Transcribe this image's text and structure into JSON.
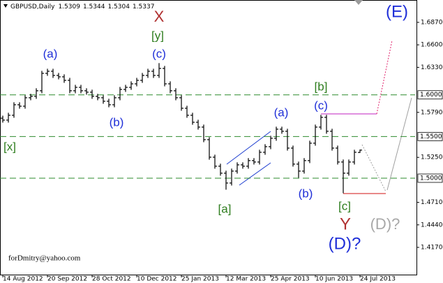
{
  "chart_data": {
    "type": "ohlc",
    "title": "GBPUSD,Daily",
    "color": "#000000",
    "open": [
      1.572,
      1.5697,
      1.5755,
      1.5881,
      1.5864,
      1.5965,
      1.5982,
      1.6049,
      1.6258,
      1.6283,
      1.6233,
      1.6216,
      1.6174,
      1.6049,
      1.609,
      1.6049,
      1.6032,
      1.5982,
      1.5965,
      1.5923,
      1.5881,
      1.5965,
      1.6065,
      1.609,
      1.6132,
      1.6174,
      1.6233,
      1.6283,
      1.6233,
      1.6317,
      1.6132,
      1.6049,
      1.5965,
      1.5839,
      1.5755,
      1.5671,
      1.5613,
      1.5462,
      1.5252,
      1.5144,
      1.506,
      1.4942,
      1.5085,
      1.516,
      1.5144,
      1.5211,
      1.5194,
      1.5311,
      1.5378,
      1.5479,
      1.5588,
      1.5563,
      1.5361,
      1.5169,
      1.5085,
      1.5211,
      1.542,
      1.5613,
      1.573,
      1.5563,
      1.5361,
      1.5194,
      1.506,
      1.5194,
      1.5309
    ],
    "high": [
      1.575,
      1.5785,
      1.5911,
      1.5911,
      1.5995,
      1.6012,
      1.6079,
      1.6288,
      1.6313,
      1.6313,
      1.6263,
      1.6246,
      1.6204,
      1.612,
      1.612,
      1.6079,
      1.6062,
      1.6012,
      1.5995,
      1.5953,
      1.5995,
      1.6095,
      1.612,
      1.6162,
      1.6204,
      1.6263,
      1.6313,
      1.6313,
      1.6381,
      1.6347,
      1.6162,
      1.6079,
      1.5995,
      1.5869,
      1.5785,
      1.5701,
      1.5643,
      1.5492,
      1.5282,
      1.5174,
      1.509,
      1.5115,
      1.519,
      1.519,
      1.5241,
      1.5241,
      1.5341,
      1.5408,
      1.5509,
      1.5618,
      1.5618,
      1.5593,
      1.5391,
      1.5199,
      1.5241,
      1.545,
      1.5643,
      1.576,
      1.576,
      1.5593,
      1.5391,
      1.5224,
      1.5224,
      1.5341,
      1.5344
    ],
    "low": [
      1.5667,
      1.5667,
      1.5725,
      1.5834,
      1.5834,
      1.5935,
      1.5952,
      1.6019,
      1.6228,
      1.6203,
      1.6186,
      1.6144,
      1.6019,
      1.6019,
      1.6019,
      1.6002,
      1.5952,
      1.5935,
      1.5893,
      1.5851,
      1.5851,
      1.5935,
      1.6035,
      1.606,
      1.6102,
      1.6144,
      1.6203,
      1.6203,
      1.6203,
      1.6102,
      1.6019,
      1.5935,
      1.5809,
      1.5725,
      1.5641,
      1.5583,
      1.5432,
      1.5222,
      1.5114,
      1.503,
      1.4862,
      1.4912,
      1.5055,
      1.5114,
      1.5114,
      1.5164,
      1.5164,
      1.5281,
      1.5348,
      1.5449,
      1.5533,
      1.5331,
      1.5139,
      1.5005,
      1.5055,
      1.5181,
      1.539,
      1.5583,
      1.5533,
      1.5331,
      1.5164,
      1.482,
      1.503,
      1.5164,
      1.5304
    ],
    "close": [
      1.5697,
      1.5755,
      1.5881,
      1.5864,
      1.5965,
      1.5982,
      1.6049,
      1.6258,
      1.6283,
      1.6233,
      1.6216,
      1.6174,
      1.6049,
      1.609,
      1.6049,
      1.6032,
      1.5982,
      1.5965,
      1.5923,
      1.5881,
      1.5965,
      1.6065,
      1.609,
      1.6132,
      1.6174,
      1.6233,
      1.6283,
      1.6233,
      1.6317,
      1.6132,
      1.6049,
      1.5965,
      1.5839,
      1.5755,
      1.5671,
      1.5613,
      1.5462,
      1.5252,
      1.5144,
      1.506,
      1.4942,
      1.5085,
      1.516,
      1.5144,
      1.5211,
      1.5194,
      1.5311,
      1.5378,
      1.5479,
      1.5588,
      1.5563,
      1.5361,
      1.5169,
      1.5085,
      1.5211,
      1.542,
      1.5613,
      1.573,
      1.5563,
      1.5361,
      1.5194,
      1.506,
      1.5194,
      1.5311,
      1.5337
    ],
    "xlim": [
      -0.5,
      73.875
    ],
    "xticks": [
      {
        "value": 0,
        "label": "14 Aug 2012"
      },
      {
        "value": 8,
        "label": "20 Sep 2012"
      },
      {
        "value": 16,
        "label": "28 Oct 2012"
      },
      {
        "value": 24,
        "label": "10 Dec 2012"
      },
      {
        "value": 32,
        "label": "25 Jan 2013"
      },
      {
        "value": 40,
        "label": "12 Mar 2013"
      },
      {
        "value": 48,
        "label": "25 Apr 2013"
      },
      {
        "value": 56,
        "label": "10 Jun 2013"
      },
      {
        "value": 64,
        "label": "24 Jul 2013"
      }
    ],
    "ylim": [
      1.3843,
      1.7138
    ],
    "yticks": [
      {
        "value": 1.417,
        "label": "1.4170"
      },
      {
        "value": 1.444,
        "label": "1.4440"
      },
      {
        "value": 1.471,
        "label": "1.4710"
      },
      {
        "value": 1.525,
        "label": "1.5250"
      },
      {
        "value": 1.579,
        "label": "1.5790"
      },
      {
        "value": 1.633,
        "label": "1.6330"
      },
      {
        "value": 1.66,
        "label": "1.6600"
      },
      {
        "value": 1.687,
        "label": "1.6870"
      }
    ],
    "levels": [
      {
        "value": 1.6,
        "label": "1.6000"
      },
      {
        "value": 1.55,
        "label": "1.5500"
      },
      {
        "value": 1.5,
        "label": "1.5000"
      }
    ],
    "level_color": "#2e8b2e",
    "annotations": [
      "X",
      "[y]",
      "(c)",
      "(a)",
      "(b)",
      "[x]",
      "[a]",
      "(a)",
      "[b]",
      "(c)",
      "(b)",
      "[c]",
      "Y",
      "(D)?",
      "(D)?",
      "(E)"
    ],
    "credit": "forDmitry@yahoo.com"
  }
}
